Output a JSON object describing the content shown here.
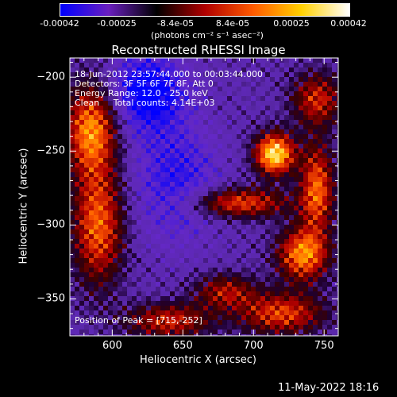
{
  "colorbar": {
    "tick_labels": [
      "-0.00042",
      "-0.00025",
      "-8.4e-05",
      "8.4e-05",
      "0.00025",
      "0.00042"
    ],
    "units": "(photons cm⁻² s⁻¹ asec⁻²)",
    "colors": [
      "#0000ff",
      "#6a1fbf",
      "#000000",
      "#b00000",
      "#ff5a00",
      "#ffd000",
      "#ffffff"
    ]
  },
  "annotations": {
    "time_range": "18-Jun-2012 23:57:44.000 to 00:03:44.000",
    "detectors": "Detectors: 3F 5F 6F 7F 8F, Att 0",
    "energy": "Energy Range: 12.0 - 25.0 keV",
    "clean": "Clean     Total counts: 4.14E+03",
    "peak": "Position of Peak = [715,-252]"
  },
  "footer_date": "11-May-2022 18:16",
  "chart_data": {
    "type": "heatmap",
    "title": "Reconstructed RHESSI Image",
    "xlabel": "Heliocentric X (arcsec)",
    "ylabel": "Heliocentric Y (arcsec)",
    "xlim": [
      570,
      760
    ],
    "ylim": [
      -375,
      -187
    ],
    "x_ticks": [
      600,
      650,
      700,
      750
    ],
    "y_ticks": [
      -200,
      -250,
      -300,
      -350
    ],
    "colorbar_range": [
      -0.00042,
      0.00042
    ],
    "peak": [
      715,
      -252
    ]
  }
}
